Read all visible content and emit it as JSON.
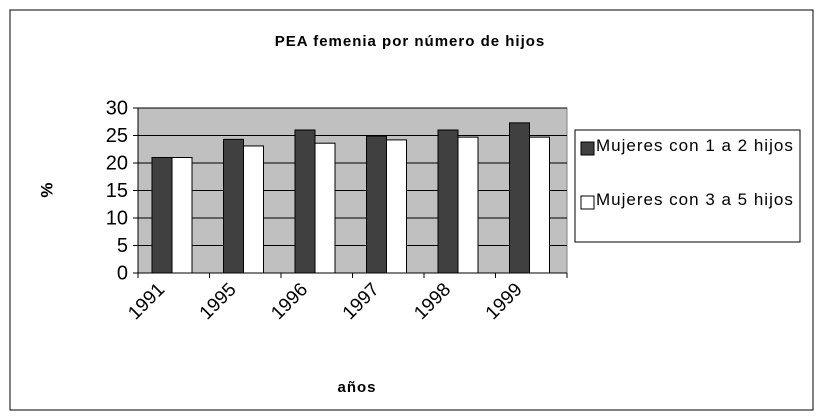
{
  "chart_data": {
    "type": "bar",
    "title": "PEA femenia por número de hijos",
    "x_label": "años",
    "y_label": "%",
    "categories": [
      "1991",
      "1995",
      "1996",
      "1997",
      "1998",
      "1999"
    ],
    "series": [
      {
        "name": "Mujeres con 1 a 2 hijos",
        "color": "#404040",
        "values": [
          21,
          24.3,
          26,
          24.9,
          26,
          27.3
        ]
      },
      {
        "name": "Mujeres con 3 a 5 hijos",
        "color": "#ffffff",
        "values": [
          21,
          23.1,
          23.6,
          24.2,
          24.7,
          24.7
        ]
      }
    ],
    "ylim": [
      0,
      30
    ],
    "yticks": [
      0,
      5,
      10,
      15,
      20,
      25,
      30
    ],
    "grid": true,
    "legend": "right"
  }
}
